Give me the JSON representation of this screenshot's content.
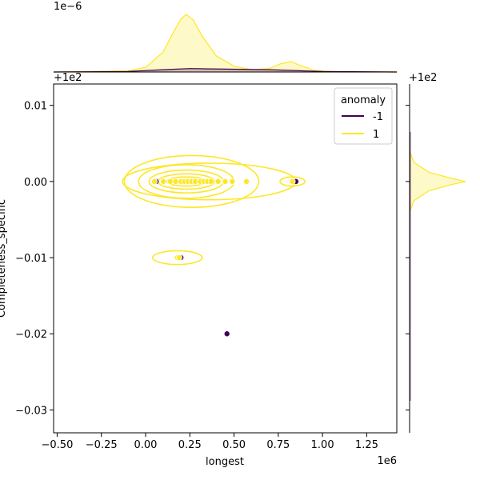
{
  "chart_data": {
    "type": "scatter",
    "title": "",
    "xlabel": "longest",
    "ylabel": "Completeness_specific",
    "x_offset_label": "1e6",
    "y_offset_label": "+1e2",
    "top_marginal_offset_label": "1e−6",
    "right_marginal_offset_label": "+1e2",
    "xlim": [
      -0.52,
      1.42
    ],
    "ylim": [
      -0.033,
      0.0128
    ],
    "x_ticks": [
      -0.5,
      -0.25,
      0.0,
      0.25,
      0.5,
      0.75,
      1.0,
      1.25
    ],
    "x_tick_labels": [
      "−0.50",
      "−0.25",
      "0.00",
      "0.25",
      "0.50",
      "0.75",
      "1.00",
      "1.25"
    ],
    "y_ticks": [
      0.01,
      0.0,
      -0.01,
      -0.02,
      -0.03
    ],
    "y_tick_labels": [
      "0.01",
      "0.00",
      "−0.01",
      "−0.02",
      "−0.03"
    ],
    "grid": false,
    "legend": {
      "title": "anomaly",
      "placement": "top-right",
      "entries": [
        {
          "label": "-1",
          "color": "#440154"
        },
        {
          "label": "1",
          "color": "#fde725"
        }
      ]
    },
    "series": [
      {
        "name": "-1",
        "color": "#440154",
        "points": [
          {
            "x": 0.06,
            "y": 0.0
          },
          {
            "x": 0.2,
            "y": -0.01
          },
          {
            "x": 0.85,
            "y": 0.0
          },
          {
            "x": 0.46,
            "y": -0.02
          }
        ]
      },
      {
        "name": "1",
        "color": "#fde725",
        "points": [
          {
            "x": 0.05,
            "y": 0.0
          },
          {
            "x": 0.1,
            "y": 0.0
          },
          {
            "x": 0.14,
            "y": 0.0
          },
          {
            "x": 0.17,
            "y": 0.0
          },
          {
            "x": 0.2,
            "y": 0.0
          },
          {
            "x": 0.22,
            "y": 0.0
          },
          {
            "x": 0.24,
            "y": 0.0
          },
          {
            "x": 0.26,
            "y": 0.0
          },
          {
            "x": 0.28,
            "y": 0.0
          },
          {
            "x": 0.31,
            "y": 0.0
          },
          {
            "x": 0.33,
            "y": 0.0
          },
          {
            "x": 0.35,
            "y": 0.0
          },
          {
            "x": 0.37,
            "y": 0.0
          },
          {
            "x": 0.41,
            "y": 0.0
          },
          {
            "x": 0.45,
            "y": 0.0
          },
          {
            "x": 0.49,
            "y": 0.0
          },
          {
            "x": 0.57,
            "y": 0.0
          },
          {
            "x": 0.83,
            "y": 0.0
          },
          {
            "x": 0.18,
            "y": -0.01
          },
          {
            "x": 0.19,
            "y": -0.01
          }
        ]
      }
    ],
    "kde_contours": [
      {
        "cx": 0.26,
        "cy": 0.0,
        "rx": 0.38,
        "ry": 0.0034
      },
      {
        "cx": 0.36,
        "cy": 0.0,
        "rx": 0.49,
        "ry": 0.0024
      },
      {
        "cx": 0.23,
        "cy": 0.0,
        "rx": 0.27,
        "ry": 0.0022
      },
      {
        "cx": 0.23,
        "cy": 0.0,
        "rx": 0.21,
        "ry": 0.0015
      },
      {
        "cx": 0.23,
        "cy": 0.0,
        "rx": 0.16,
        "ry": 0.001
      },
      {
        "cx": 0.23,
        "cy": 0.0,
        "rx": 0.11,
        "ry": 0.0006
      },
      {
        "cx": 0.83,
        "cy": 0.0,
        "rx": 0.07,
        "ry": 0.0006
      },
      {
        "cx": 0.18,
        "cy": -0.01,
        "rx": 0.14,
        "ry": 0.0009
      }
    ],
    "top_marginal": {
      "series": [
        {
          "name": "1",
          "color": "#fde725",
          "x": [
            -0.52,
            -0.1,
            0.0,
            0.1,
            0.15,
            0.2,
            0.23,
            0.27,
            0.32,
            0.4,
            0.5,
            0.6,
            0.7,
            0.76,
            0.82,
            0.87,
            0.95,
            1.1,
            1.42
          ],
          "density": [
            0.0,
            0.02,
            0.08,
            0.35,
            0.65,
            0.92,
            1.0,
            0.9,
            0.62,
            0.28,
            0.1,
            0.04,
            0.06,
            0.14,
            0.18,
            0.12,
            0.03,
            0.0,
            0.0
          ]
        },
        {
          "name": "-1",
          "color": "#440154",
          "x": [
            -0.52,
            -0.1,
            0.1,
            0.25,
            0.45,
            0.7,
            1.0,
            1.42
          ],
          "density": [
            0.0,
            0.01,
            0.04,
            0.06,
            0.05,
            0.04,
            0.01,
            0.0
          ]
        }
      ]
    },
    "right_marginal": {
      "series": [
        {
          "name": "1",
          "color": "#fde725",
          "y": [
            -0.004,
            -0.0025,
            -0.0012,
            -0.0004,
            0.0,
            0.0004,
            0.0012,
            0.0025,
            0.004
          ],
          "density": [
            0.0,
            0.08,
            0.35,
            0.75,
            1.0,
            0.75,
            0.35,
            0.08,
            0.0
          ]
        }
      ]
    }
  }
}
